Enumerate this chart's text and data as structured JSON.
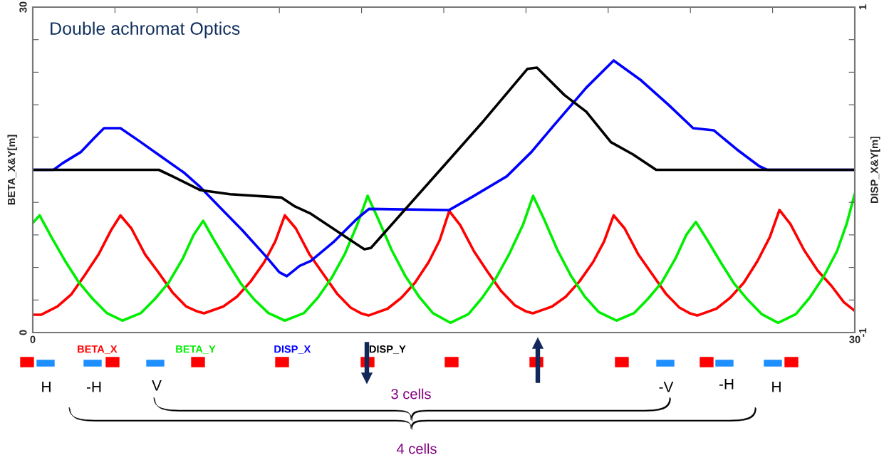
{
  "chart_data": {
    "type": "line",
    "title": "Double achromat Optics",
    "ylabel": "BETA_X&Y[m]",
    "y2label": "DISP_X&Y[m]",
    "annotations": [
      "H",
      "-H",
      "V",
      "-V",
      "-H",
      "H",
      "3 cells",
      "4 cells"
    ],
    "xlim": [
      0,
      30
    ],
    "xticks": [
      0,
      {
        "value": 3,
        "label": null
      },
      {
        "value": 6,
        "label": null
      },
      {
        "value": 9,
        "label": null
      },
      {
        "value": 12,
        "label": null
      },
      {
        "value": 15,
        "label": null
      },
      {
        "value": 18,
        "label": null
      },
      {
        "value": 21,
        "label": null
      },
      {
        "value": 24,
        "label": null
      },
      {
        "value": 27,
        "label": null
      },
      30
    ],
    "ylim": [
      0,
      30
    ],
    "yticks": [
      0,
      {
        "value": 3,
        "label": null
      },
      {
        "value": 6,
        "label": null
      },
      {
        "value": 9,
        "label": null
      },
      {
        "value": 12,
        "label": null
      },
      {
        "value": 15,
        "label": null
      },
      {
        "value": 18,
        "label": null
      },
      {
        "value": 21,
        "label": null
      },
      {
        "value": 24,
        "label": null
      },
      {
        "value": 27,
        "label": null
      },
      30
    ],
    "y2lim": [
      -1,
      1
    ],
    "y2ticks": [
      {
        "value": -1,
        "label": "-1"
      },
      {
        "value": -0.8,
        "label": null
      },
      {
        "value": -0.6,
        "label": null
      },
      {
        "value": -0.4,
        "label": null
      },
      {
        "value": -0.2,
        "label": null
      },
      {
        "value": 0,
        "label": null
      },
      {
        "value": 0.2,
        "label": null
      },
      {
        "value": 0.4,
        "label": null
      },
      {
        "value": 0.6,
        "label": null
      },
      {
        "value": 0.8,
        "label": null
      },
      1
    ],
    "grid": false,
    "legend": "bottom",
    "series": [
      {
        "name": "BETA_X",
        "color": "#ff0000",
        "x": [
          0,
          0.3,
          0.9,
          1.4,
          1.9,
          2.4,
          2.85,
          3.2,
          3.6,
          4.1,
          4.6,
          5.1,
          5.6,
          6.0,
          6.25,
          6.95,
          7.45,
          7.95,
          8.45,
          8.85,
          9.2,
          9.6,
          10.1,
          10.6,
          11.1,
          11.6,
          12.0,
          12.25,
          12.95,
          13.45,
          13.95,
          14.45,
          14.85,
          15.2,
          15.6,
          16.1,
          16.6,
          17.1,
          17.6,
          18.0,
          18.25,
          18.95,
          19.45,
          19.95,
          20.45,
          20.85,
          21.2,
          21.6,
          22.1,
          22.6,
          23.1,
          23.6,
          24.0,
          24.25,
          24.95,
          25.45,
          25.95,
          26.45,
          26.9,
          27.25,
          27.65,
          28.15,
          28.65,
          29.15,
          29.6,
          30
        ],
        "values": [
          1.64,
          1.64,
          2.4,
          3.5,
          5.3,
          7.2,
          9.4,
          10.8,
          9.6,
          7.2,
          5.5,
          3.7,
          2.4,
          1.95,
          1.77,
          2.4,
          3.3,
          4.7,
          6.5,
          8.4,
          10.8,
          9.6,
          7.2,
          5.4,
          3.6,
          2.3,
          1.75,
          1.57,
          2.2,
          3.2,
          4.6,
          6.5,
          8.5,
          11.2,
          9.9,
          7.5,
          5.6,
          3.8,
          2.5,
          1.95,
          1.77,
          2.4,
          3.3,
          4.7,
          6.5,
          8.4,
          10.8,
          9.6,
          7.2,
          5.4,
          3.6,
          2.3,
          1.75,
          1.57,
          2.2,
          3.2,
          4.6,
          6.6,
          8.8,
          11.3,
          10.0,
          7.6,
          5.7,
          4.3,
          2.8,
          2.0
        ]
      },
      {
        "name": "BETA_Y",
        "color": "#00ee00",
        "x": [
          0,
          0.25,
          0.68,
          1.18,
          1.69,
          2.19,
          2.7,
          3.27,
          3.95,
          4.46,
          4.96,
          5.47,
          5.87,
          6.22,
          6.6,
          7.1,
          7.6,
          8.1,
          8.6,
          9.2,
          9.9,
          10.4,
          10.9,
          11.4,
          11.85,
          12.22,
          12.6,
          13.1,
          13.6,
          14.1,
          14.6,
          15.24,
          15.9,
          16.4,
          16.9,
          17.4,
          17.9,
          18.26,
          18.65,
          19.15,
          19.65,
          20.15,
          20.65,
          21.3,
          21.95,
          22.45,
          22.95,
          23.45,
          23.85,
          24.2,
          24.6,
          25.1,
          25.6,
          26.1,
          26.6,
          27.2,
          27.85,
          28.35,
          28.85,
          29.35,
          29.7,
          30
        ],
        "values": [
          10.1,
          10.8,
          8.8,
          6.6,
          4.6,
          3.1,
          1.8,
          1.1,
          1.8,
          3.1,
          4.6,
          6.8,
          9.0,
          10.3,
          8.6,
          6.5,
          4.5,
          3.0,
          1.8,
          1.1,
          1.8,
          3.2,
          5.0,
          7.3,
          10.0,
          12.6,
          10.5,
          7.6,
          5.2,
          3.3,
          1.8,
          0.9,
          1.7,
          3.2,
          5.0,
          7.3,
          10.0,
          12.6,
          10.5,
          7.6,
          5.2,
          3.3,
          1.9,
          1.1,
          1.8,
          3.1,
          4.6,
          6.8,
          9.0,
          10.2,
          8.6,
          6.5,
          4.5,
          3.0,
          1.7,
          0.9,
          1.7,
          3.2,
          5.1,
          7.5,
          10.0,
          12.8
        ]
      },
      {
        "name": "DISP_X",
        "color": "#0000ff",
        "axis": "y2",
        "x": [
          0,
          0.76,
          1.08,
          1.76,
          2.27,
          2.6,
          3.2,
          3.86,
          4.7,
          5.54,
          6.12,
          6.8,
          7.64,
          8.5,
          9.0,
          9.27,
          9.74,
          10.15,
          11.0,
          11.84,
          12.27,
          15.2,
          16.0,
          17.3,
          18.2,
          19.0,
          20.2,
          21.2,
          22.2,
          23.2,
          24.1,
          24.85,
          25.7,
          26.5,
          26.8,
          30
        ],
        "values": [
          0,
          0,
          0.04,
          0.11,
          0.2,
          0.256,
          0.256,
          0.18,
          0.08,
          -0.02,
          -0.107,
          -0.225,
          -0.37,
          -0.53,
          -0.63,
          -0.654,
          -0.59,
          -0.56,
          -0.44,
          -0.3,
          -0.24,
          -0.247,
          -0.17,
          -0.04,
          0.11,
          0.27,
          0.505,
          0.672,
          0.55,
          0.4,
          0.256,
          0.243,
          0.125,
          0.024,
          0,
          0
        ]
      },
      {
        "name": "DISP_Y",
        "color": "#000000",
        "axis": "y2",
        "x": [
          0,
          4.6,
          5.1,
          6.12,
          7.2,
          9.07,
          9.57,
          10.15,
          12.1,
          12.34,
          15.0,
          16.45,
          18.05,
          18.4,
          19.4,
          20.2,
          21.1,
          21.9,
          22.75,
          30
        ],
        "values": [
          0,
          0,
          -0.04,
          -0.125,
          -0.15,
          -0.17,
          -0.225,
          -0.27,
          -0.488,
          -0.48,
          0.024,
          0.3,
          0.62,
          0.628,
          0.46,
          0.357,
          0.17,
          0.095,
          0,
          0
        ]
      }
    ]
  }
}
